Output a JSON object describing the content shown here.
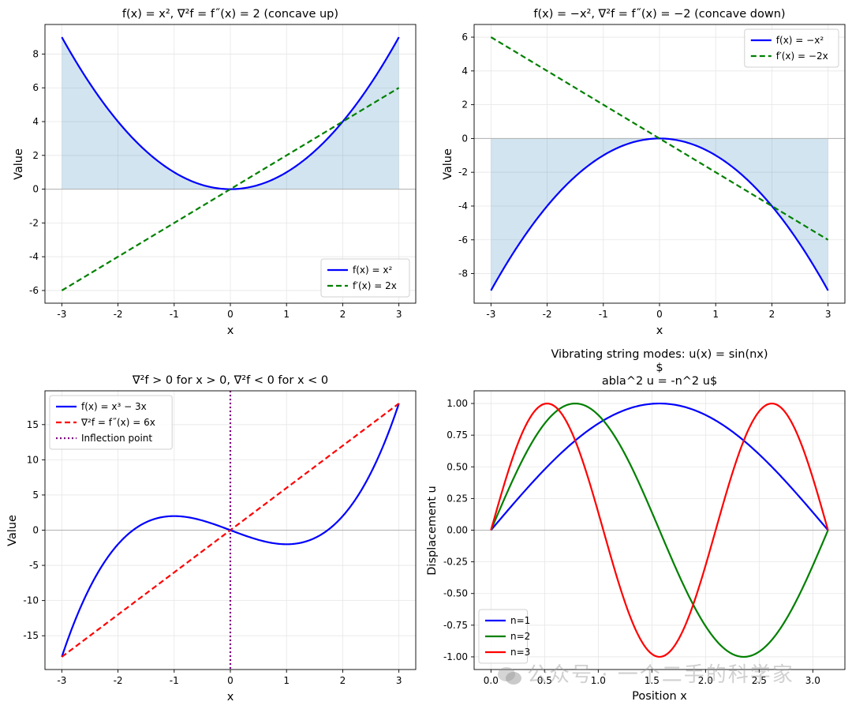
{
  "watermark": "公众号 · 一个二手的科学家",
  "chart_data": [
    {
      "type": "line",
      "title": "f(x) = x², ∇²f = f˝(x) = 2 (concave up)",
      "xlabel": "x",
      "ylabel": "Value",
      "xlim": [
        -3.3,
        3.3
      ],
      "ylim": [
        -6.75,
        9.75
      ],
      "xticks": [
        -3,
        -2,
        -1,
        0,
        1,
        2,
        3
      ],
      "yticks": [
        -6,
        -4,
        -2,
        0,
        2,
        4,
        6,
        8
      ],
      "grid": true,
      "legend": "lower right",
      "fill": "between f(x) and 0, light blue",
      "series": [
        {
          "name": "f(x) = x²",
          "color": "#0000ff",
          "style": "solid",
          "x": [
            -3,
            -2.5,
            -2,
            -1.5,
            -1,
            -0.5,
            0,
            0.5,
            1,
            1.5,
            2,
            2.5,
            3
          ],
          "y": [
            9,
            6.25,
            4,
            2.25,
            1,
            0.25,
            0,
            0.25,
            1,
            2.25,
            4,
            6.25,
            9
          ]
        },
        {
          "name": "f′(x) = 2x",
          "color": "#008000",
          "style": "dashed",
          "x": [
            -3,
            3
          ],
          "y": [
            -6,
            6
          ]
        }
      ]
    },
    {
      "type": "line",
      "title": "f(x) = −x², ∇²f = f˝(x) = −2 (concave down)",
      "xlabel": "x",
      "ylabel": "Value",
      "xlim": [
        -3.3,
        3.3
      ],
      "ylim": [
        -9.75,
        6.75
      ],
      "xticks": [
        -3,
        -2,
        -1,
        0,
        1,
        2,
        3
      ],
      "yticks": [
        -8,
        -6,
        -4,
        -2,
        0,
        2,
        4,
        6
      ],
      "grid": true,
      "legend": "upper right",
      "fill": "between f(x) and 0, light blue",
      "series": [
        {
          "name": "f(x) = −x²",
          "color": "#0000ff",
          "style": "solid",
          "x": [
            -3,
            -2.5,
            -2,
            -1.5,
            -1,
            -0.5,
            0,
            0.5,
            1,
            1.5,
            2,
            2.5,
            3
          ],
          "y": [
            -9,
            -6.25,
            -4,
            -2.25,
            -1,
            -0.25,
            0,
            -0.25,
            -1,
            -2.25,
            -4,
            -6.25,
            -9
          ]
        },
        {
          "name": "f′(x) = −2x",
          "color": "#008000",
          "style": "dashed",
          "x": [
            -3,
            3
          ],
          "y": [
            6,
            -6
          ]
        }
      ]
    },
    {
      "type": "line",
      "title": "∇²f > 0 for x > 0, ∇²f < 0 for x < 0",
      "xlabel": "x",
      "ylabel": "Value",
      "xlim": [
        -3.3,
        3.3
      ],
      "ylim": [
        -19.8,
        19.8
      ],
      "xticks": [
        -3,
        -2,
        -1,
        0,
        1,
        2,
        3
      ],
      "yticks": [
        -15,
        -10,
        -5,
        0,
        5,
        10,
        15
      ],
      "grid": true,
      "legend": "upper left",
      "series": [
        {
          "name": "f(x) = x³ − 3x",
          "color": "#0000ff",
          "style": "solid",
          "x": [
            -3,
            -2.5,
            -2,
            -1.5,
            -1,
            -0.5,
            0,
            0.5,
            1,
            1.5,
            2,
            2.5,
            3
          ],
          "y": [
            -18,
            -8.125,
            -2,
            1.125,
            2,
            1.375,
            0,
            -1.375,
            -2,
            -1.125,
            2,
            8.125,
            18
          ]
        },
        {
          "name": "∇²f = f˝(x) = 6x",
          "color": "#ff0000",
          "style": "dashed",
          "x": [
            -3,
            3
          ],
          "y": [
            -18,
            18
          ]
        },
        {
          "name": "Inflection point",
          "color": "#800080",
          "style": "dotted",
          "vline_x": 0
        }
      ]
    },
    {
      "type": "line",
      "title_line1": "Vibrating string modes: u(x) = sin(nx)",
      "title_line2": "$",
      "title_line3": "abla^2 u = -n^2 u$",
      "xlabel": "Position x",
      "ylabel": "Displacement u",
      "xlim": [
        -0.157,
        3.299
      ],
      "ylim": [
        -1.1,
        1.1
      ],
      "xticks": [
        0.0,
        0.5,
        1.0,
        1.5,
        2.0,
        2.5,
        3.0
      ],
      "xticklabels": [
        "0.0",
        "0.5",
        "1.0",
        "1.5",
        "2.0",
        "2.5",
        "3.0"
      ],
      "yticks": [
        -1.0,
        -0.75,
        -0.5,
        -0.25,
        0.0,
        0.25,
        0.5,
        0.75,
        1.0
      ],
      "yticklabels": [
        "-1.00",
        "-0.75",
        "-0.50",
        "-0.25",
        "0.00",
        "0.25",
        "0.50",
        "0.75",
        "1.00"
      ],
      "grid": true,
      "legend": "lower left",
      "series": [
        {
          "name": "n=1",
          "color": "#0000ff",
          "style": "solid",
          "n": 1,
          "x": [
            0,
            0.785,
            1.571,
            2.356,
            3.142
          ],
          "y": [
            0,
            0.707,
            1,
            0.707,
            0
          ]
        },
        {
          "name": "n=2",
          "color": "#008000",
          "style": "solid",
          "n": 2,
          "x": [
            0,
            0.785,
            1.571,
            2.356,
            3.142
          ],
          "y": [
            0,
            1,
            0,
            -1,
            0
          ]
        },
        {
          "name": "n=3",
          "color": "#ff0000",
          "style": "solid",
          "n": 3,
          "x": [
            0,
            0.524,
            1.571,
            2.618,
            3.142
          ],
          "y": [
            0,
            1,
            -1,
            1,
            0
          ]
        }
      ]
    }
  ]
}
